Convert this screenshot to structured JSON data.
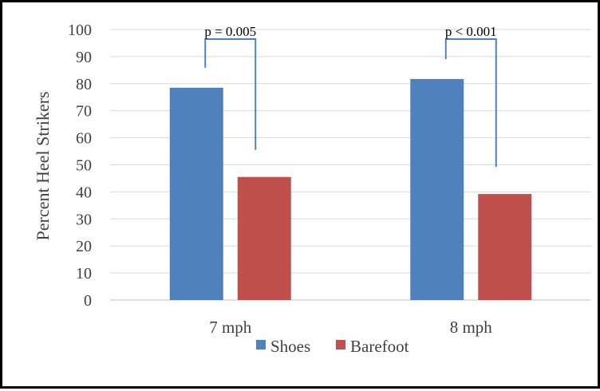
{
  "chart_data": {
    "type": "bar",
    "title": "",
    "xlabel": "",
    "ylabel": "Percent Heel Strikers",
    "ylim": [
      0,
      100
    ],
    "yticks": [
      0,
      10,
      20,
      30,
      40,
      50,
      60,
      70,
      80,
      90,
      100
    ],
    "categories": [
      "7 mph",
      "8 mph"
    ],
    "series": [
      {
        "name": "Shoes",
        "values": [
          78.5,
          81.7
        ],
        "color": "#4f81bd"
      },
      {
        "name": "Barefoot",
        "values": [
          45.5,
          39.2
        ],
        "color": "#c0504d"
      }
    ],
    "annotations": [
      {
        "category": "7 mph",
        "label": "p = 0.005"
      },
      {
        "category": "8 mph",
        "label": "p < 0.001"
      }
    ],
    "grid": true,
    "legend_position": "bottom",
    "bracket_color": "#4f81bd",
    "grid_color": "#d9d9d9"
  }
}
